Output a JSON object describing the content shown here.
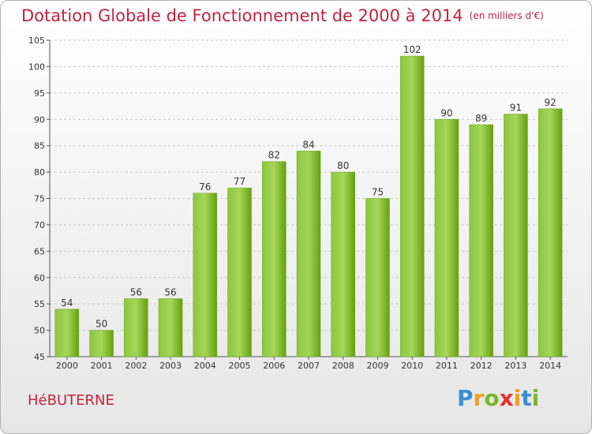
{
  "title": "Dotation Globale de Fonctionnement de 2000 à 2014",
  "unit_note": "(en milliers d'€)",
  "commune": "HéBUTERNE",
  "logo": {
    "text": "Proxiti",
    "colors": [
      "#3a8fd0",
      "#f0a020",
      "#e83030",
      "#7ab82a"
    ]
  },
  "colors": {
    "title": "#c0243f",
    "bar_light": "#a6d65a",
    "bar_dark": "#66a00e"
  },
  "chart_data": {
    "type": "bar",
    "categories": [
      "2000",
      "2001",
      "2002",
      "2003",
      "2004",
      "2005",
      "2006",
      "2007",
      "2008",
      "2009",
      "2010",
      "2011",
      "2012",
      "2013",
      "2014"
    ],
    "values": [
      54,
      50,
      56,
      56,
      76,
      77,
      82,
      84,
      80,
      75,
      102,
      90,
      89,
      91,
      92
    ],
    "ylim": [
      45,
      105
    ],
    "yticks": [
      45,
      50,
      55,
      60,
      65,
      70,
      75,
      80,
      85,
      90,
      95,
      100,
      105
    ],
    "grid": true,
    "data_labels": true
  }
}
